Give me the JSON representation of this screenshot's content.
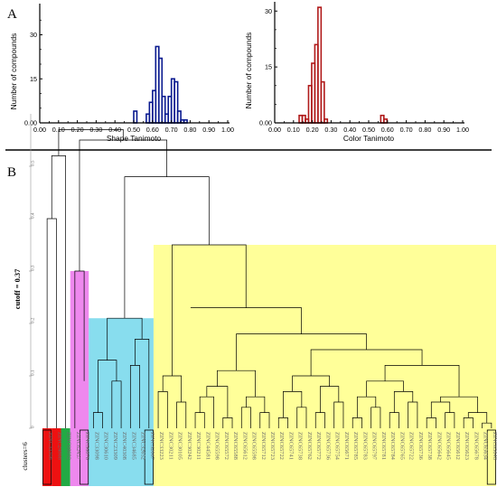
{
  "panels": {
    "a_label": "A",
    "b_label": "B"
  },
  "chart_data": [
    {
      "type": "bar",
      "panel": "A-left",
      "xlabel": "Shape Tanimoto",
      "ylabel": "Number of compounds",
      "xlim": [
        0.0,
        1.0
      ],
      "ylim": [
        0,
        40
      ],
      "xticks": [
        "0.00",
        "0.10",
        "0.20",
        "0.30",
        "0.40",
        "0.50",
        "0.60",
        "0.70",
        "0.80",
        "0.90",
        "1.00"
      ],
      "yticks": [
        "0.00",
        "15",
        "30"
      ],
      "color": "#0a1a8f",
      "bin_start": 0.5,
      "bin_width": 0.0167,
      "values": [
        4,
        0,
        0,
        0,
        3,
        7,
        11,
        26,
        22,
        9,
        3,
        9,
        15,
        14,
        4,
        1,
        1
      ]
    },
    {
      "type": "bar",
      "panel": "A-right",
      "xlabel": "Color Tanimoto",
      "ylabel": "Number of compounds",
      "xlim": [
        0.0,
        1.0
      ],
      "ylim": [
        0,
        32
      ],
      "xticks": [
        "0.00",
        "0.10",
        "0.20",
        "0.30",
        "0.40",
        "0.50",
        "0.60",
        "0.70",
        "0.80",
        "0.90",
        "1.00"
      ],
      "yticks": [
        "0.00",
        "15",
        "30"
      ],
      "color": "#b01a1a",
      "bin_start": 0.13,
      "bin_width": 0.0167,
      "values": [
        2,
        2,
        1,
        10,
        16,
        21,
        31,
        11,
        1,
        0,
        0,
        0,
        0,
        0,
        0,
        0,
        0,
        0,
        0,
        0,
        0,
        0,
        0,
        0,
        0,
        0,
        2,
        1
      ]
    },
    {
      "type": "dendrogram",
      "panel": "B",
      "yticks": [
        "0",
        "0.1",
        "0.2",
        "0.3",
        "0.4",
        "0.5"
      ],
      "cutoff_label": "cutoff = 0.37",
      "clusters_label": "clusters=6",
      "leaves": [
        "ZINC33308",
        "ZINC24868",
        "ZINC08692",
        "ZINC62457",
        "ZINC56876",
        "ZINC33098",
        "ZINC30610",
        "ZINC23309",
        "ZINC40308",
        "ZINC34685",
        "ZINC32652",
        "ZINC32667",
        "ZINC33223",
        "ZINC30211",
        "ZINC30105",
        "ZINC30242",
        "ZINC30211",
        "ZINC44581",
        "ZINC65598",
        "ZINC65572",
        "ZINC65588",
        "ZINC65612",
        "ZINC65598",
        "ZINC65712",
        "ZINC65723",
        "ZINC65722",
        "ZINC65741",
        "ZINC65738",
        "ZINC65762",
        "ZINC65772",
        "ZINC65736",
        "ZINC65754",
        "ZINC65671",
        "ZINC65785",
        "ZINC65783",
        "ZINC65797",
        "ZINC65781",
        "ZINC65784",
        "ZINC65765",
        "ZINC65722",
        "ZINC65736",
        "ZINC65738",
        "ZINC65642",
        "ZINC65645",
        "ZINC65612",
        "ZINC65623",
        "ZINC65678",
        "ZINC65634",
        "ZINC65648"
      ],
      "cluster_colors": [
        "#ee1111",
        "#ee1111",
        "#22aa44",
        "#ee88ee",
        "#88ddee",
        "#ffff99"
      ]
    }
  ]
}
